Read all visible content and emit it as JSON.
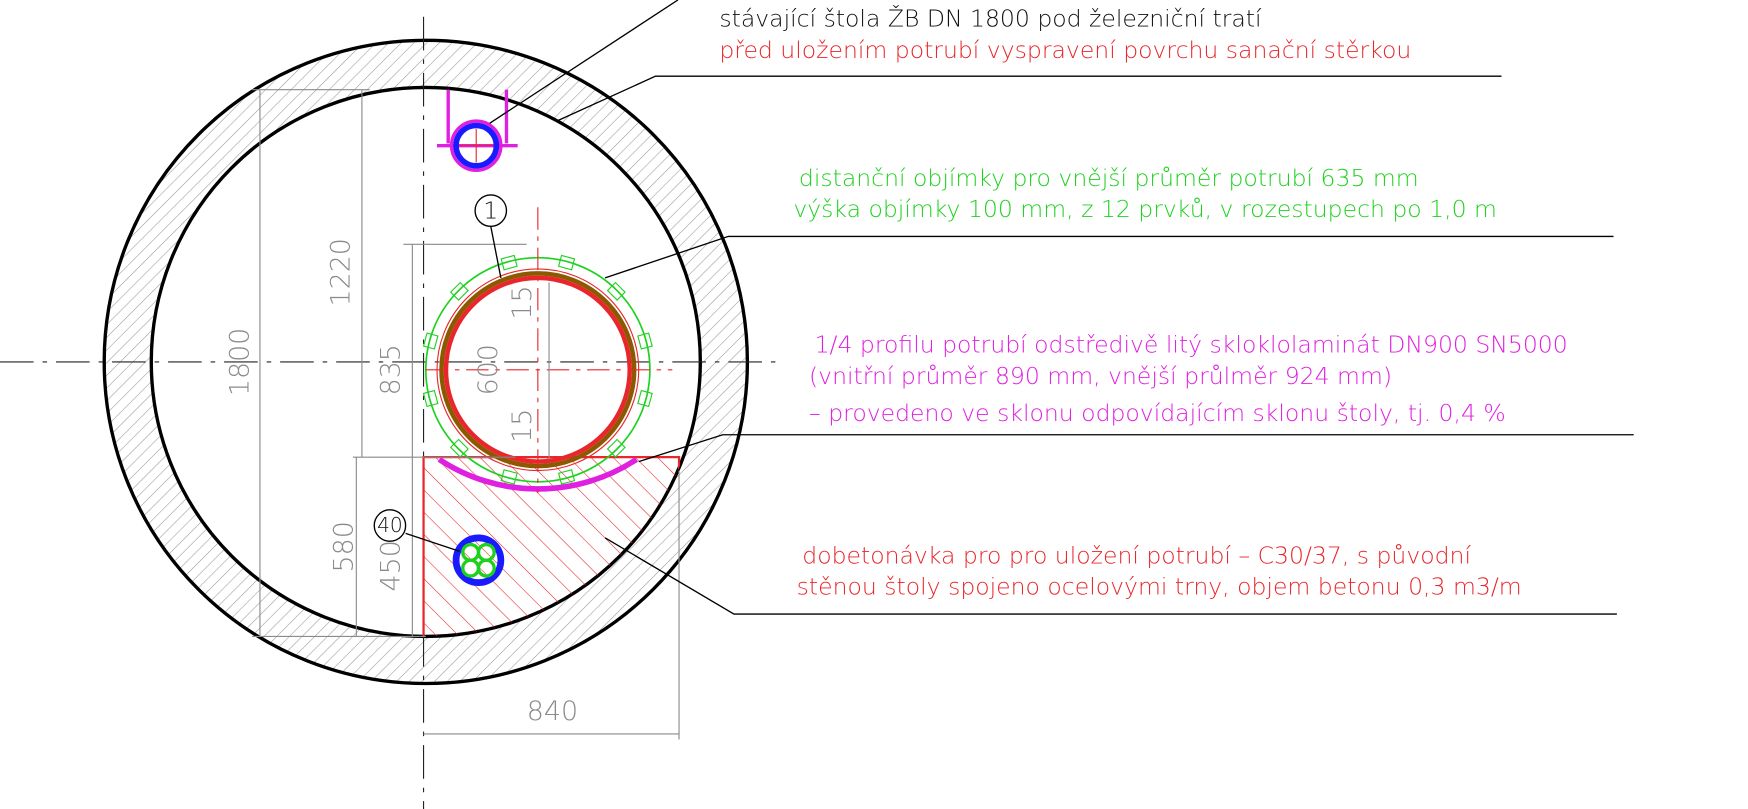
{
  "annotations": [
    {
      "lines": [
        "stávající štola ŽB DN 1800 pod železniční tratí",
        "před uložením potrubí vyspravení povrchu sanační stěrkou"
      ]
    },
    {
      "lines": [
        "distanční objímky pro vnější průměr potrubí 635 mm",
        "výška objímky 100 mm, z 12 prvků, v rozestupech po 1,0 m"
      ]
    },
    {
      "lines": [
        "1/4 profilu potrubí odstředivě litý skloklolaminát DN900 SN5000",
        "(vnitřní průměr 890 mm, vnější průlměr 924 mm)",
        "– provedeno ve sklonu odpovídajícím sklonu štoly, tj. 0,4 %"
      ]
    },
    {
      "lines": [
        "dobetonávka pro pro uložení potrubí – C30/37, s původní",
        "stěnou štoly spojeno ocelovými trny, objem betonu 0,3 m3/m"
      ]
    }
  ],
  "dimensions": [
    "1800",
    "1220",
    "835",
    "600",
    "15",
    "15",
    "580",
    "450",
    "840"
  ],
  "callouts": [
    "1",
    "40"
  ]
}
